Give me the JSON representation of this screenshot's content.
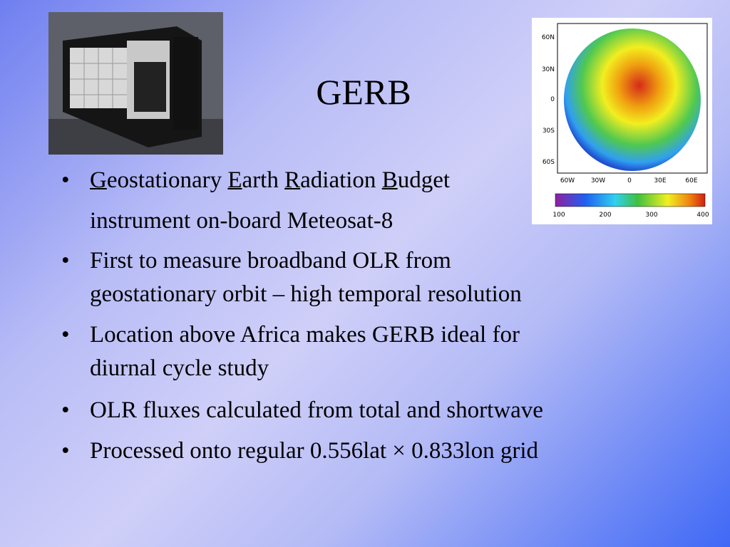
{
  "title": "GERB",
  "items": [
    {
      "bullet": true,
      "lines": [
        [
          {
            "text": "G",
            "underline": true
          },
          {
            "text": "eostationary "
          },
          {
            "text": "E",
            "underline": true
          },
          {
            "text": "arth "
          },
          {
            "text": "R",
            "underline": true
          },
          {
            "text": "adiation "
          },
          {
            "text": "B",
            "underline": true
          },
          {
            "text": "udget"
          }
        ]
      ]
    },
    {
      "bullet": false,
      "lines": [
        [
          {
            "text": "instrument on-board Meteosat-8"
          }
        ]
      ]
    },
    {
      "bullet": true,
      "lines": [
        [
          {
            "text": "First to measure broadband OLR from"
          }
        ],
        [
          {
            "text": "geostationary orbit – high temporal resolution"
          }
        ]
      ]
    },
    {
      "bullet": true,
      "lines": [
        [
          {
            "text": "Location above Africa makes GERB ideal for"
          }
        ],
        [
          {
            "text": "diurnal cycle study"
          }
        ]
      ]
    },
    {
      "bullet": true,
      "lines": [
        [
          {
            "text": "OLR fluxes calculated from total and shortwave"
          }
        ]
      ]
    },
    {
      "bullet": true,
      "lines": [
        [
          {
            "text": "Processed onto regular 0.556lat × 0.833lon grid"
          }
        ]
      ]
    }
  ],
  "map": {
    "lat_labels": [
      "60N",
      "30N",
      "0",
      "30S",
      "60S"
    ],
    "lon_labels": [
      "60W",
      "30W",
      "0",
      "30E",
      "60E"
    ],
    "colorbar_labels": [
      "100",
      "200",
      "300",
      "400"
    ]
  }
}
